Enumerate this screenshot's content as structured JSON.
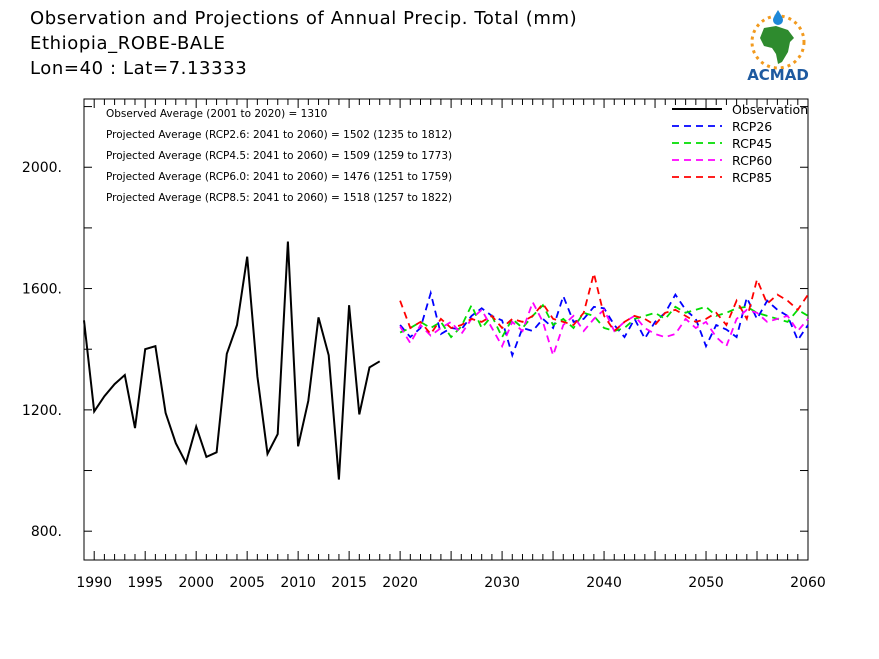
{
  "header": {
    "title_line1": "Observation and Projections of Annual Precip. Total (mm)",
    "title_line2": "Ethiopia_ROBE-BALE",
    "title_line3": "Lon=40 : Lat=7.13333",
    "logo_text": "ACMAD"
  },
  "colors": {
    "observation": "#000000",
    "rcp26": "#0000ff",
    "rcp45": "#00dd00",
    "rcp60": "#ff00ff",
    "rcp85": "#ff0000",
    "logo_text": "#1e5aa0",
    "logo_green": "#2e8b2e",
    "logo_orange": "#f29a1e"
  },
  "chart_data": {
    "type": "line",
    "title": "Observation and Projections of Annual Precip. Total (mm)",
    "xlim": [
      1989,
      2060
    ],
    "ylim": [
      705,
      2225
    ],
    "x_ticks_labeled": [
      1990,
      1995,
      2000,
      2005,
      2010,
      2015,
      2020,
      2030,
      2040,
      2050,
      2060
    ],
    "y_ticks_labeled": [
      800,
      1200,
      1600,
      2000
    ],
    "y_tick_labels": [
      "800.",
      "1200.",
      "1600.",
      "2000."
    ],
    "grid": false,
    "legend_position": "top-right",
    "annotations": [
      "Observed Average (2001 to 2020) = 1310",
      "Projected Average (RCP2.6: 2041 to 2060) = 1502 (1235 to 1812)",
      "Projected Average (RCP4.5: 2041 to 2060) = 1509 (1259 to 1773)",
      "Projected Average (RCP6.0: 2041 to 2060) = 1476 (1251 to 1759)",
      "Projected Average (RCP8.5: 2041 to 2060) = 1518 (1257 to 1822)"
    ],
    "series": [
      {
        "name": "Observation",
        "style": "solid",
        "color_key": "observation",
        "x": [
          1989,
          1990,
          1991,
          1992,
          1993,
          1994,
          1995,
          1996,
          1997,
          1998,
          1999,
          2000,
          2001,
          2002,
          2003,
          2004,
          2005,
          2006,
          2007,
          2008,
          2009,
          2010,
          2011,
          2012,
          2013,
          2014,
          2015,
          2016,
          2017,
          2018,
          2019
        ],
        "y": [
          1495,
          1195,
          1245,
          1285,
          1315,
          1140,
          1400,
          1410,
          1190,
          1090,
          1025,
          1145,
          1045,
          1060,
          1385,
          1480,
          1705,
          1310,
          1055,
          1120,
          1755,
          1080,
          1230,
          1505,
          1380,
          970,
          1545,
          1185,
          1340,
          1360,
          null
        ]
      },
      {
        "name": "RCP26",
        "style": "dashed",
        "color_key": "rcp26",
        "x": [
          2020,
          2021,
          2022,
          2023,
          2024,
          2025,
          2026,
          2027,
          2028,
          2029,
          2030,
          2031,
          2032,
          2033,
          2034,
          2035,
          2036,
          2037,
          2038,
          2039,
          2040,
          2041,
          2042,
          2043,
          2044,
          2045,
          2046,
          2047,
          2048,
          2049,
          2050,
          2051,
          2052,
          2053,
          2054,
          2055,
          2056,
          2057,
          2058,
          2059,
          2060
        ],
        "y": [
          1480,
          1440,
          1470,
          1585,
          1450,
          1470,
          1465,
          1510,
          1535,
          1510,
          1495,
          1380,
          1470,
          1460,
          1500,
          1470,
          1575,
          1490,
          1500,
          1540,
          1535,
          1480,
          1440,
          1500,
          1435,
          1490,
          1520,
          1580,
          1530,
          1500,
          1410,
          1480,
          1465,
          1440,
          1570,
          1500,
          1560,
          1530,
          1510,
          1430,
          1480
        ]
      },
      {
        "name": "RCP45",
        "style": "dashed",
        "color_key": "rcp45",
        "x": [
          2020,
          2021,
          2022,
          2023,
          2024,
          2025,
          2026,
          2027,
          2028,
          2029,
          2030,
          2031,
          2032,
          2033,
          2034,
          2035,
          2036,
          2037,
          2038,
          2039,
          2040,
          2041,
          2042,
          2043,
          2044,
          2045,
          2046,
          2047,
          2048,
          2049,
          2050,
          2051,
          2052,
          2053,
          2054,
          2055,
          2056,
          2057,
          2058,
          2059,
          2060
        ],
        "y": [
          1455,
          1470,
          1490,
          1470,
          1490,
          1440,
          1475,
          1545,
          1470,
          1510,
          1440,
          1500,
          1470,
          1510,
          1545,
          1480,
          1500,
          1470,
          1520,
          1510,
          1470,
          1460,
          1470,
          1500,
          1510,
          1520,
          1500,
          1540,
          1520,
          1530,
          1540,
          1510,
          1520,
          1535,
          1540,
          1520,
          1510,
          1500,
          1490,
          1530,
          1510
        ]
      },
      {
        "name": "RCP60",
        "style": "dashed",
        "color_key": "rcp60",
        "x": [
          2020,
          2021,
          2022,
          2023,
          2024,
          2025,
          2026,
          2027,
          2028,
          2029,
          2030,
          2031,
          2032,
          2033,
          2034,
          2035,
          2036,
          2037,
          2038,
          2039,
          2040,
          2041,
          2042,
          2043,
          2044,
          2045,
          2046,
          2047,
          2048,
          2049,
          2050,
          2051,
          2052,
          2053,
          2054,
          2055,
          2056,
          2057,
          2058,
          2059,
          2060
        ],
        "y": [
          1475,
          1420,
          1480,
          1445,
          1470,
          1490,
          1450,
          1500,
          1530,
          1470,
          1410,
          1490,
          1460,
          1555,
          1490,
          1380,
          1480,
          1510,
          1460,
          1500,
          1530,
          1460,
          1490,
          1510,
          1470,
          1450,
          1440,
          1450,
          1500,
          1470,
          1490,
          1440,
          1410,
          1500,
          1530,
          1520,
          1490,
          1500,
          1510,
          1460,
          1500
        ]
      },
      {
        "name": "RCP85",
        "style": "dashed",
        "color_key": "rcp85",
        "x": [
          2020,
          2021,
          2022,
          2023,
          2024,
          2025,
          2026,
          2027,
          2028,
          2029,
          2030,
          2031,
          2032,
          2033,
          2034,
          2035,
          2036,
          2037,
          2038,
          2039,
          2040,
          2041,
          2042,
          2043,
          2044,
          2045,
          2046,
          2047,
          2048,
          2049,
          2050,
          2051,
          2052,
          2053,
          2054,
          2055,
          2056,
          2057,
          2058,
          2059,
          2060
        ],
        "y": [
          1560,
          1470,
          1490,
          1450,
          1500,
          1470,
          1480,
          1500,
          1490,
          1510,
          1470,
          1500,
          1490,
          1510,
          1550,
          1500,
          1490,
          1480,
          1520,
          1650,
          1510,
          1460,
          1490,
          1510,
          1500,
          1480,
          1520,
          1530,
          1510,
          1490,
          1500,
          1520,
          1480,
          1560,
          1500,
          1630,
          1550,
          1580,
          1560,
          1530,
          1580
        ]
      }
    ]
  }
}
